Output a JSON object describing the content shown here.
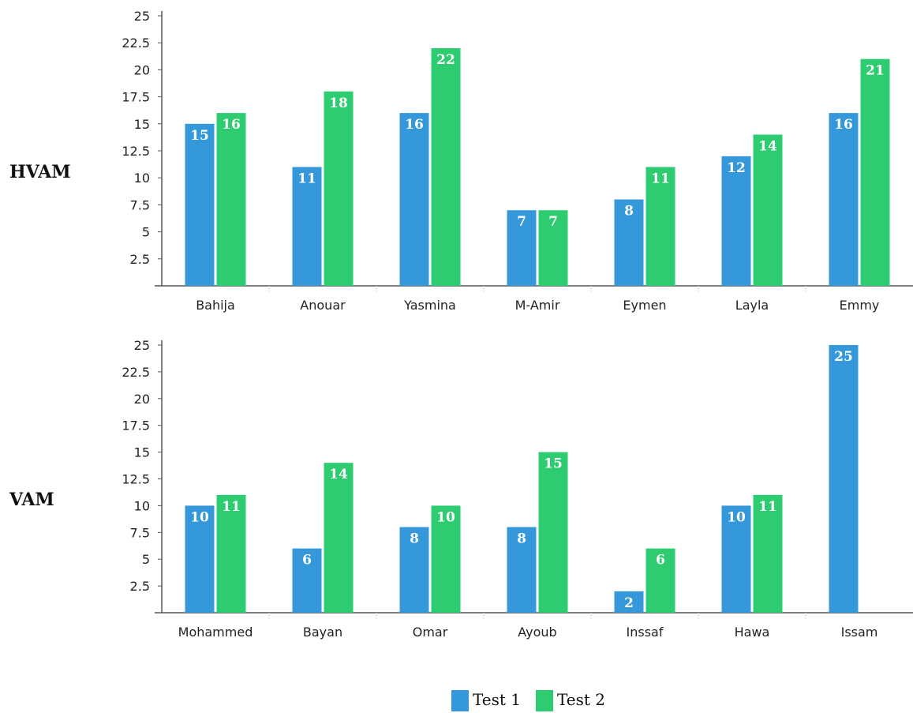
{
  "colors": {
    "test1": "#3498db",
    "test2": "#2ecc71"
  },
  "legend": [
    "Test 1",
    "Test 2"
  ],
  "chart_data": [
    {
      "type": "bar",
      "group_label": "HVAM",
      "categories": [
        "Bahija",
        "Anouar",
        "Yasmina",
        "M-Amir",
        "Eymen",
        "Layla",
        "Emmy"
      ],
      "series": [
        {
          "name": "Test 1",
          "values": [
            15,
            11,
            16,
            7,
            8,
            12,
            16
          ]
        },
        {
          "name": "Test 2",
          "values": [
            16,
            18,
            22,
            7,
            11,
            14,
            21
          ]
        }
      ],
      "yticks": [
        "2.5",
        "5",
        "7.5",
        "10",
        "12.5",
        "15",
        "17.5",
        "20",
        "22.5",
        "25"
      ],
      "ylim": [
        0,
        25
      ],
      "legend_position": "bottom"
    },
    {
      "type": "bar",
      "group_label": "VAM",
      "categories": [
        "Mohammed",
        "Bayan",
        "Omar",
        "Ayoub",
        "Inssaf",
        "Hawa",
        "Issam"
      ],
      "series": [
        {
          "name": "Test 1",
          "values": [
            10,
            6,
            8,
            8,
            2,
            10,
            25
          ]
        },
        {
          "name": "Test 2",
          "values": [
            11,
            14,
            10,
            15,
            6,
            11,
            null
          ]
        }
      ],
      "yticks": [
        "2.5",
        "5",
        "7.5",
        "10",
        "12.5",
        "15",
        "17.5",
        "20",
        "22.5",
        "25"
      ],
      "ylim": [
        0,
        25
      ],
      "legend_position": "bottom"
    }
  ]
}
